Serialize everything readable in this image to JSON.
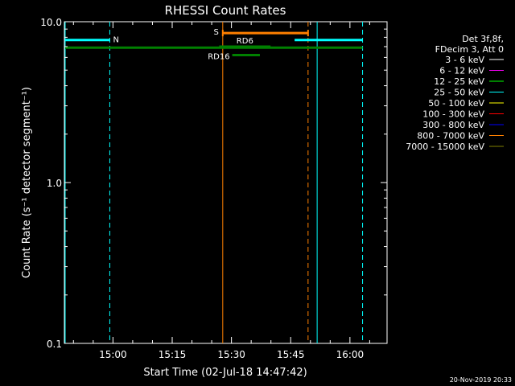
{
  "chart_data": {
    "type": "line",
    "title": "RHESSI Count Rates",
    "xlabel": "Start Time (02-Jul-18 14:47:42)",
    "ylabel": "Count Rate (s⁻¹ detector segment⁻¹)",
    "y_scale": "log",
    "ylim": [
      0.1,
      10.0
    ],
    "x_range_minutes_after_14_00": [
      47.7,
      129.4
    ],
    "x_ticks": [
      {
        "label": "15:00",
        "minutes": 60
      },
      {
        "label": "15:15",
        "minutes": 75
      },
      {
        "label": "15:30",
        "minutes": 90
      },
      {
        "label": "15:45",
        "minutes": 105
      },
      {
        "label": "16:00",
        "minutes": 120
      },
      {
        "label": "16:15",
        "minutes": 135
      }
    ],
    "y_ticks": [
      {
        "label": "10.0",
        "value": 10.0
      },
      {
        "label": "1.0",
        "value": 1.0
      },
      {
        "label": "0.1",
        "value": 0.1
      }
    ],
    "legend_header": [
      "Det 3f,8f,",
      "FDecim 3, Att 0"
    ],
    "legend": [
      {
        "label": "3 - 6 keV",
        "color": "#ffffff"
      },
      {
        "label": "6 - 12 keV",
        "color": "#ff00ff"
      },
      {
        "label": "12 - 25 keV",
        "color": "#00ff00"
      },
      {
        "label": "25 - 50 keV",
        "color": "#00ffff"
      },
      {
        "label": "50 - 100 keV",
        "color": "#ffff00"
      },
      {
        "label": "100 - 300 keV",
        "color": "#ff0000"
      },
      {
        "label": "300 - 800 keV",
        "color": "#0000ff"
      },
      {
        "label": "800 - 7000 keV",
        "color": "#ff8000"
      },
      {
        "label": "7000 - 15000 keV",
        "color": "#808000"
      }
    ],
    "legend_placement": "right",
    "bars": [
      {
        "label": "N",
        "color": "#00ffff",
        "segments": [
          [
            47.9,
            59.2
          ],
          [
            106.0,
            123.2
          ]
        ],
        "level": 7.7
      },
      {
        "label": "S",
        "color": "#ff8000",
        "segments": [
          [
            87.8,
            109.4
          ]
        ],
        "level": 8.5
      },
      {
        "label": "",
        "color": "#008000",
        "segments": [
          [
            47.9,
            123.2
          ]
        ],
        "level": 6.9
      },
      {
        "label": "RD6",
        "color": "#008000",
        "segments": [
          [
            86.9,
            99.9
          ]
        ],
        "level": 7.0
      },
      {
        "label": "RD16",
        "color": "#008000",
        "segments": [
          [
            90.2,
            97.2
          ]
        ],
        "level": 6.2
      }
    ],
    "vlines": [
      {
        "minutes": 47.9,
        "color": "#00ffff",
        "style": "solid"
      },
      {
        "minutes": 59.2,
        "color": "#00ffff",
        "style": "dashed"
      },
      {
        "minutes": 111.7,
        "color": "#00ffff",
        "style": "solid"
      },
      {
        "minutes": 123.2,
        "color": "#00ffff",
        "style": "dashed"
      },
      {
        "minutes": 87.8,
        "color": "#ff8000",
        "style": "solid"
      },
      {
        "minutes": 109.4,
        "color": "#ff8000",
        "style": "dashed"
      }
    ],
    "grid": false,
    "timestamp": "20-Nov-2019 20:33"
  }
}
